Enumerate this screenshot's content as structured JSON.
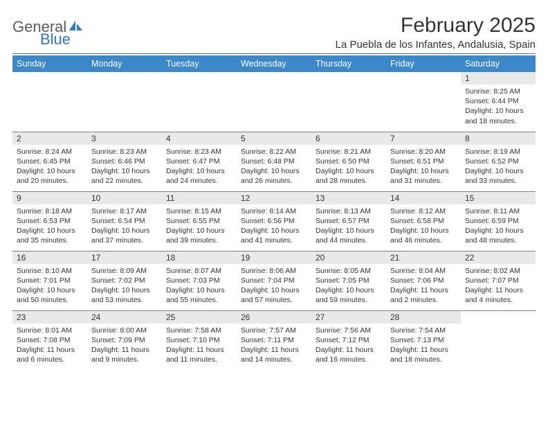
{
  "brand": {
    "part1": "General",
    "part2": "Blue"
  },
  "title": "February 2025",
  "location": "La Puebla de los Infantes, Andalusia, Spain",
  "colors": {
    "header_bg": "#3c87c7",
    "header_rule": "#2f78bd",
    "daynum_bg": "#e9e9e9",
    "row_border": "#808080",
    "text": "#333333",
    "logo_gray": "#5a5a5a",
    "logo_blue": "#2f78bd"
  },
  "weekdays": [
    "Sunday",
    "Monday",
    "Tuesday",
    "Wednesday",
    "Thursday",
    "Friday",
    "Saturday"
  ],
  "weeks": [
    [
      null,
      null,
      null,
      null,
      null,
      null,
      {
        "n": "1",
        "sr": "8:25 AM",
        "ss": "6:44 PM",
        "dl": "10 hours and 18 minutes."
      }
    ],
    [
      {
        "n": "2",
        "sr": "8:24 AM",
        "ss": "6:45 PM",
        "dl": "10 hours and 20 minutes."
      },
      {
        "n": "3",
        "sr": "8:23 AM",
        "ss": "6:46 PM",
        "dl": "10 hours and 22 minutes."
      },
      {
        "n": "4",
        "sr": "8:23 AM",
        "ss": "6:47 PM",
        "dl": "10 hours and 24 minutes."
      },
      {
        "n": "5",
        "sr": "8:22 AM",
        "ss": "6:48 PM",
        "dl": "10 hours and 26 minutes."
      },
      {
        "n": "6",
        "sr": "8:21 AM",
        "ss": "6:50 PM",
        "dl": "10 hours and 28 minutes."
      },
      {
        "n": "7",
        "sr": "8:20 AM",
        "ss": "6:51 PM",
        "dl": "10 hours and 31 minutes."
      },
      {
        "n": "8",
        "sr": "8:19 AM",
        "ss": "6:52 PM",
        "dl": "10 hours and 33 minutes."
      }
    ],
    [
      {
        "n": "9",
        "sr": "8:18 AM",
        "ss": "6:53 PM",
        "dl": "10 hours and 35 minutes."
      },
      {
        "n": "10",
        "sr": "8:17 AM",
        "ss": "6:54 PM",
        "dl": "10 hours and 37 minutes."
      },
      {
        "n": "11",
        "sr": "8:15 AM",
        "ss": "6:55 PM",
        "dl": "10 hours and 39 minutes."
      },
      {
        "n": "12",
        "sr": "8:14 AM",
        "ss": "6:56 PM",
        "dl": "10 hours and 41 minutes."
      },
      {
        "n": "13",
        "sr": "8:13 AM",
        "ss": "6:57 PM",
        "dl": "10 hours and 44 minutes."
      },
      {
        "n": "14",
        "sr": "8:12 AM",
        "ss": "6:58 PM",
        "dl": "10 hours and 46 minutes."
      },
      {
        "n": "15",
        "sr": "8:11 AM",
        "ss": "6:59 PM",
        "dl": "10 hours and 48 minutes."
      }
    ],
    [
      {
        "n": "16",
        "sr": "8:10 AM",
        "ss": "7:01 PM",
        "dl": "10 hours and 50 minutes."
      },
      {
        "n": "17",
        "sr": "8:09 AM",
        "ss": "7:02 PM",
        "dl": "10 hours and 53 minutes."
      },
      {
        "n": "18",
        "sr": "8:07 AM",
        "ss": "7:03 PM",
        "dl": "10 hours and 55 minutes."
      },
      {
        "n": "19",
        "sr": "8:06 AM",
        "ss": "7:04 PM",
        "dl": "10 hours and 57 minutes."
      },
      {
        "n": "20",
        "sr": "8:05 AM",
        "ss": "7:05 PM",
        "dl": "10 hours and 59 minutes."
      },
      {
        "n": "21",
        "sr": "8:04 AM",
        "ss": "7:06 PM",
        "dl": "11 hours and 2 minutes."
      },
      {
        "n": "22",
        "sr": "8:02 AM",
        "ss": "7:07 PM",
        "dl": "11 hours and 4 minutes."
      }
    ],
    [
      {
        "n": "23",
        "sr": "8:01 AM",
        "ss": "7:08 PM",
        "dl": "11 hours and 6 minutes."
      },
      {
        "n": "24",
        "sr": "8:00 AM",
        "ss": "7:09 PM",
        "dl": "11 hours and 9 minutes."
      },
      {
        "n": "25",
        "sr": "7:58 AM",
        "ss": "7:10 PM",
        "dl": "11 hours and 11 minutes."
      },
      {
        "n": "26",
        "sr": "7:57 AM",
        "ss": "7:11 PM",
        "dl": "11 hours and 14 minutes."
      },
      {
        "n": "27",
        "sr": "7:56 AM",
        "ss": "7:12 PM",
        "dl": "11 hours and 16 minutes."
      },
      {
        "n": "28",
        "sr": "7:54 AM",
        "ss": "7:13 PM",
        "dl": "11 hours and 18 minutes."
      },
      null
    ]
  ],
  "labels": {
    "sunrise": "Sunrise: ",
    "sunset": "Sunset: ",
    "daylight": "Daylight: "
  }
}
